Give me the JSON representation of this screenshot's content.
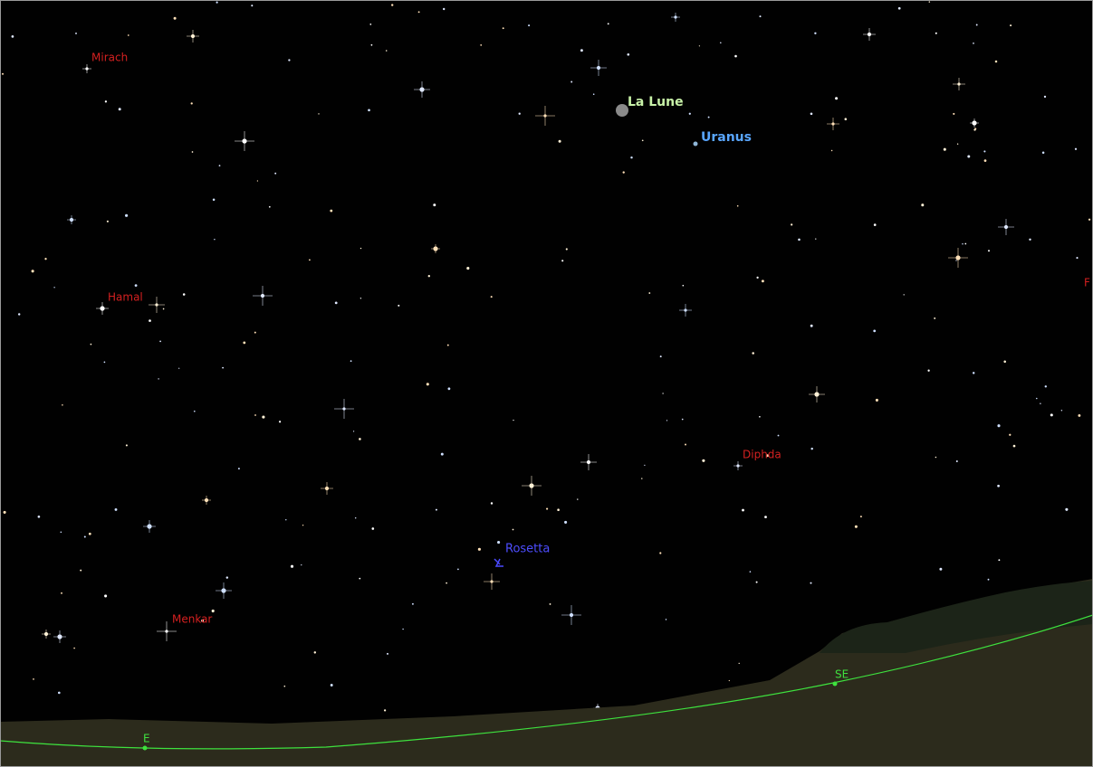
{
  "sky": {
    "labels": {
      "mirach": "Mirach",
      "moon": "La Lune",
      "uranus": "Uranus",
      "hamal": "Hamal",
      "edge": "F",
      "diphda": "Diphda",
      "rosetta": "Rosetta",
      "menkar": "Menkar"
    }
  },
  "horizon": {
    "cardinals": {
      "east": "E",
      "southeast": "SE"
    }
  }
}
